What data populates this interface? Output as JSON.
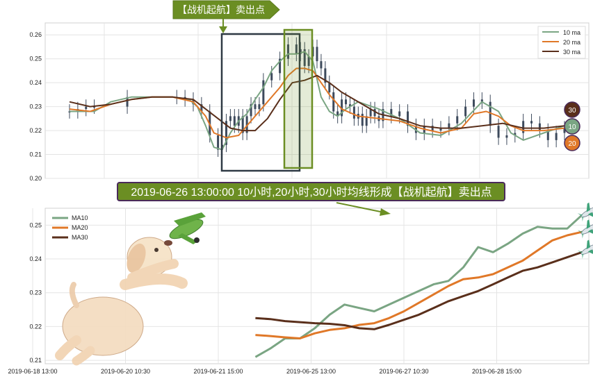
{
  "annotations": {
    "top_banner": "【战机起航】卖出点",
    "bottom_banner": "2019-06-26 13:00:00 10小时,20小时,30小时均线形成【战机起航】卖出点"
  },
  "badges": {
    "ma30": "30",
    "ma10": "10",
    "ma20": "20"
  },
  "colors": {
    "ma10": "#7aa583",
    "ma20": "#e07828",
    "ma30": "#5a2f1b",
    "candle": "#3d4a5c",
    "banner": "#6b8e23",
    "banner_border": "#4a2a5a",
    "box_dark": "#2f3a45",
    "box_green": "#6b8e23"
  },
  "chart_data": [
    {
      "type": "line",
      "title": "",
      "ylim": [
        0.2,
        0.265
      ],
      "y_ticks": [
        "0.20",
        "0.21",
        "0.22",
        "0.23",
        "0.24",
        "0.25",
        "0.26"
      ],
      "grid": true,
      "legend_position": "top-right",
      "x_index": [
        0,
        240
      ],
      "candles": {
        "x": [
          0,
          4,
          8,
          12,
          28,
          52,
          56,
          60,
          64,
          68,
          72,
          74,
          76,
          78,
          80,
          82,
          84,
          86,
          88,
          90,
          92,
          94,
          98,
          102,
          106,
          110,
          112,
          114,
          116,
          118,
          120,
          122,
          124,
          126,
          128,
          130,
          132,
          134,
          136,
          138,
          140,
          142,
          144,
          146,
          148,
          150,
          152,
          156,
          160,
          164,
          168,
          172,
          176,
          180,
          184,
          188,
          192,
          196,
          200,
          204,
          208,
          212,
          216,
          220,
          224,
          228,
          232,
          236,
          240
        ],
        "y": [
          0.228,
          0.229,
          0.23,
          0.23,
          0.234,
          0.234,
          0.233,
          0.231,
          0.228,
          0.218,
          0.212,
          0.214,
          0.224,
          0.226,
          0.222,
          0.226,
          0.219,
          0.226,
          0.231,
          0.229,
          0.231,
          0.241,
          0.244,
          0.25,
          0.256,
          0.252,
          0.254,
          0.247,
          0.251,
          0.255,
          0.249,
          0.246,
          0.24,
          0.236,
          0.228,
          0.226,
          0.233,
          0.231,
          0.23,
          0.225,
          0.227,
          0.222,
          0.226,
          0.229,
          0.226,
          0.224,
          0.229,
          0.226,
          0.228,
          0.222,
          0.219,
          0.222,
          0.22,
          0.221,
          0.223,
          0.226,
          0.23,
          0.233,
          0.232,
          0.222,
          0.217,
          0.218,
          0.219,
          0.224,
          0.223,
          0.22,
          0.216,
          0.219,
          0.221
        ]
      },
      "series": [
        {
          "name": "10 ma",
          "x": [
            0,
            12,
            20,
            30,
            40,
            50,
            58,
            62,
            66,
            70,
            74,
            78,
            82,
            86,
            90,
            94,
            98,
            102,
            106,
            110,
            114,
            118,
            122,
            126,
            130,
            134,
            140,
            150,
            160,
            170,
            180,
            190,
            200,
            208,
            214,
            220,
            230,
            240
          ],
          "y": [
            0.228,
            0.228,
            0.232,
            0.234,
            0.234,
            0.234,
            0.233,
            0.23,
            0.222,
            0.213,
            0.212,
            0.219,
            0.224,
            0.227,
            0.233,
            0.238,
            0.245,
            0.249,
            0.252,
            0.252,
            0.253,
            0.249,
            0.234,
            0.228,
            0.226,
            0.229,
            0.232,
            0.229,
            0.225,
            0.219,
            0.218,
            0.223,
            0.232,
            0.228,
            0.219,
            0.216,
            0.219,
            0.222
          ]
        },
        {
          "name": "20 ma",
          "x": [
            0,
            10,
            20,
            30,
            40,
            50,
            60,
            66,
            70,
            76,
            82,
            86,
            92,
            96,
            102,
            106,
            110,
            114,
            118,
            122,
            126,
            132,
            140,
            150,
            160,
            170,
            180,
            190,
            196,
            202,
            208,
            214,
            220,
            230,
            240
          ],
          "y": [
            0.229,
            0.228,
            0.231,
            0.233,
            0.234,
            0.234,
            0.232,
            0.226,
            0.219,
            0.217,
            0.218,
            0.222,
            0.228,
            0.232,
            0.238,
            0.243,
            0.246,
            0.246,
            0.245,
            0.24,
            0.235,
            0.229,
            0.226,
            0.225,
            0.224,
            0.221,
            0.219,
            0.221,
            0.227,
            0.228,
            0.226,
            0.222,
            0.22,
            0.22,
            0.221
          ]
        },
        {
          "name": "30 ma",
          "x": [
            0,
            10,
            20,
            30,
            40,
            50,
            60,
            66,
            72,
            78,
            84,
            90,
            96,
            102,
            108,
            114,
            120,
            126,
            132,
            140,
            150,
            160,
            170,
            180,
            190,
            200,
            210,
            220,
            230,
            240
          ],
          "y": [
            0.232,
            0.23,
            0.231,
            0.233,
            0.234,
            0.234,
            0.233,
            0.229,
            0.225,
            0.221,
            0.22,
            0.22,
            0.225,
            0.233,
            0.24,
            0.241,
            0.243,
            0.24,
            0.236,
            0.232,
            0.227,
            0.225,
            0.222,
            0.221,
            0.221,
            0.222,
            0.223,
            0.221,
            0.221,
            0.222
          ]
        }
      ]
    },
    {
      "type": "line",
      "title": "",
      "ylim": [
        0.209,
        0.255
      ],
      "y_ticks": [
        "0.21",
        "0.22",
        "0.23",
        "0.24",
        "0.25"
      ],
      "x_tick_labels": [
        "2019-06-18 13:00",
        "2019-06-20 10:30",
        "2019-06-21 15:00",
        "2019-06-25 13:00",
        "2019-06-27 10:30",
        "2019-06-28 15:00"
      ],
      "x_index": [
        0,
        150
      ],
      "grid": true,
      "legend_position": "top-left",
      "series": [
        {
          "name": "MA10",
          "x": [
            60,
            64,
            68,
            72,
            76,
            80,
            84,
            88,
            92,
            96,
            100,
            104,
            108,
            112,
            116,
            120,
            124,
            128,
            132,
            136,
            140,
            144,
            148
          ],
          "y": [
            0.211,
            0.2135,
            0.2165,
            0.2165,
            0.2195,
            0.2235,
            0.2265,
            0.2255,
            0.2245,
            0.2265,
            0.2285,
            0.2305,
            0.2325,
            0.2335,
            0.2375,
            0.2435,
            0.242,
            0.2445,
            0.2475,
            0.2495,
            0.249,
            0.249,
            0.253
          ]
        },
        {
          "name": "MA20",
          "x": [
            60,
            64,
            68,
            72,
            76,
            80,
            84,
            88,
            92,
            96,
            100,
            104,
            108,
            112,
            116,
            120,
            124,
            128,
            132,
            136,
            140,
            144,
            148
          ],
          "y": [
            0.2175,
            0.2172,
            0.2168,
            0.2165,
            0.218,
            0.219,
            0.2195,
            0.2205,
            0.221,
            0.2225,
            0.2245,
            0.227,
            0.2295,
            0.232,
            0.234,
            0.2345,
            0.2355,
            0.2375,
            0.2395,
            0.2425,
            0.2455,
            0.247,
            0.248
          ]
        },
        {
          "name": "MA30",
          "x": [
            60,
            64,
            68,
            72,
            76,
            80,
            84,
            88,
            92,
            96,
            100,
            104,
            108,
            112,
            116,
            120,
            124,
            128,
            132,
            136,
            140,
            144,
            148
          ],
          "y": [
            0.2225,
            0.2222,
            0.2216,
            0.2213,
            0.221,
            0.2208,
            0.2204,
            0.2195,
            0.2192,
            0.2205,
            0.222,
            0.2235,
            0.2255,
            0.2275,
            0.229,
            0.2305,
            0.2325,
            0.2345,
            0.2365,
            0.2375,
            0.239,
            0.2405,
            0.242
          ]
        }
      ]
    }
  ]
}
